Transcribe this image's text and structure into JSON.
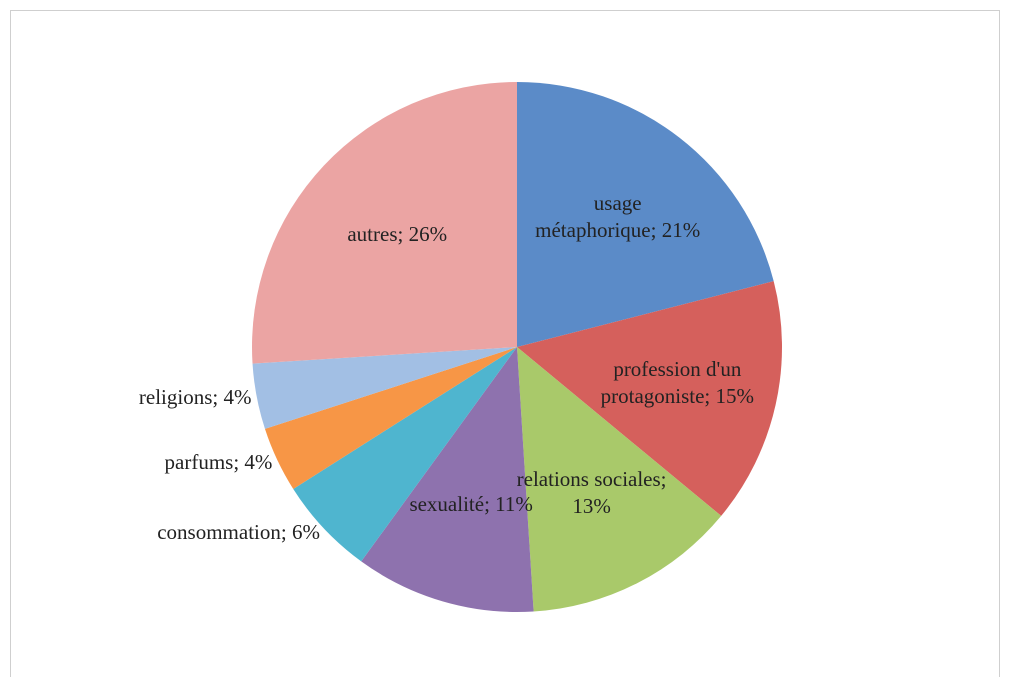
{
  "chart_data": {
    "type": "pie",
    "values": [
      21,
      15,
      13,
      11,
      6,
      4,
      4,
      26
    ],
    "value_labels": [
      "usage métaphorique; 21%",
      "profession d'un protagoniste; 15%",
      "relations sociales; 13%",
      "sexualité; 11%",
      "consommation; 6%",
      "parfums; 4%",
      "religions; 4%",
      "autres; 26%"
    ],
    "colors": [
      "#5b8bc8",
      "#d5605c",
      "#a9c96a",
      "#8e72ae",
      "#4fb5cf",
      "#f79646",
      "#a2bfe4",
      "#eba4a3"
    ]
  }
}
